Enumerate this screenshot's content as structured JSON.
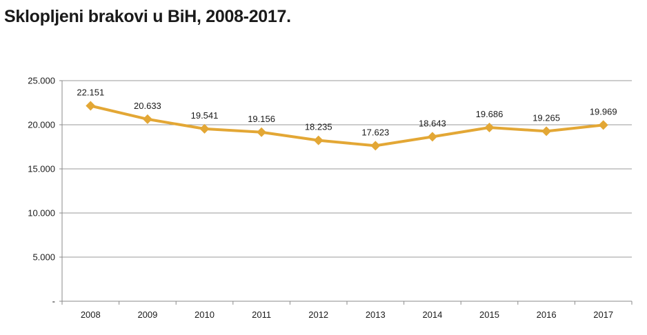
{
  "chart_data": {
    "type": "line",
    "title": "Sklopljeni brakovi u BiH, 2008-2017.",
    "categories": [
      "2008",
      "2009",
      "2010",
      "2011",
      "2012",
      "2013",
      "2014",
      "2015",
      "2016",
      "2017"
    ],
    "values": [
      22151,
      20633,
      19541,
      19156,
      18235,
      17623,
      18643,
      19686,
      19265,
      19969
    ],
    "value_labels": [
      "22.151",
      "20.633",
      "19.541",
      "19.156",
      "18.235",
      "17.623",
      "18.643",
      "19.686",
      "19.265",
      "19.969"
    ],
    "y_ticks": [
      0,
      5000,
      10000,
      15000,
      20000,
      25000
    ],
    "y_tick_labels": [
      "-",
      "5.000",
      "10.000",
      "15.000",
      "20.000",
      "25.000"
    ],
    "ylim": [
      0,
      25000
    ],
    "xlabel": "",
    "ylabel": "",
    "grid": true,
    "series_color": "#e3a735",
    "grid_color": "#9a9a9a",
    "axis_color": "#8a8a8a"
  }
}
